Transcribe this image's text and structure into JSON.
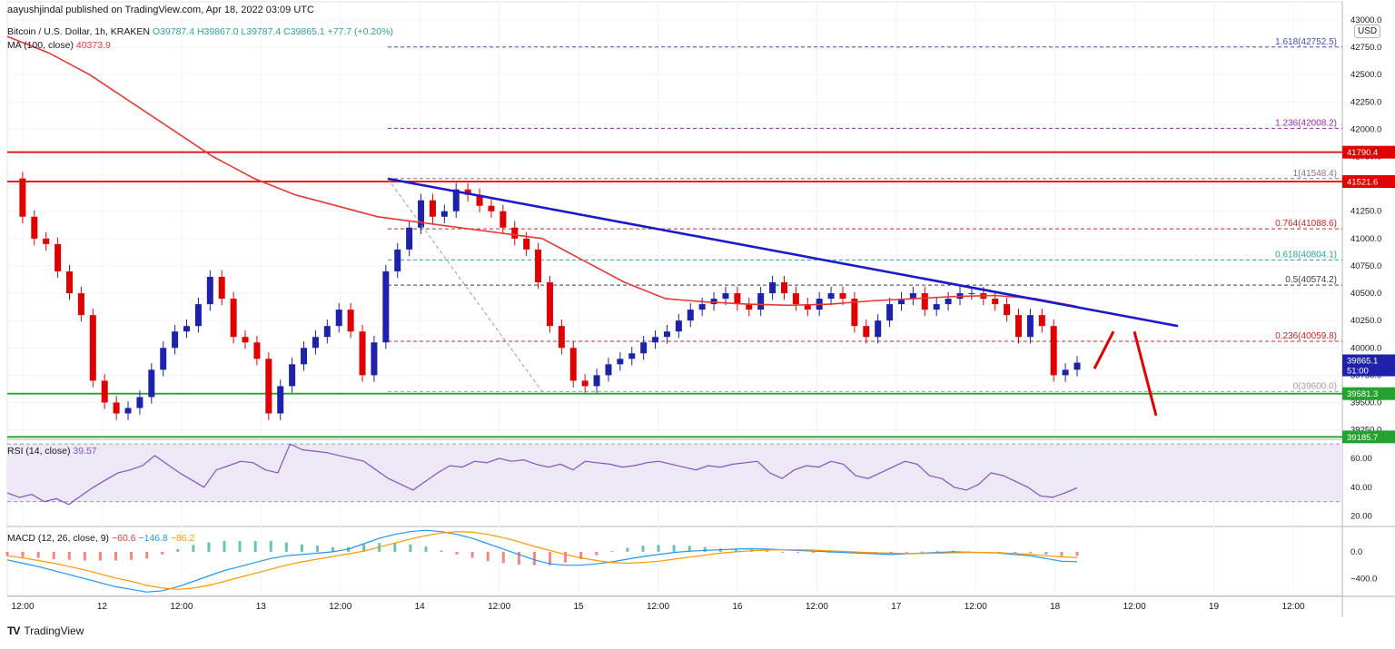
{
  "header": {
    "published": "aayushjindal published on TradingView.com, Apr 18, 2022 03:09 UTC",
    "symbol": "Bitcoin / U.S. Dollar, 1h, KRAKEN",
    "ohlc": "O39787.4  H39867.0  L39787.4  C39865.1  +77.7 (+0.20%)",
    "ma_label": "MA (100, close)",
    "ma_value": "40373.9",
    "currency": "USD"
  },
  "footer": {
    "brand": "TradingView",
    "logo": "TV"
  },
  "colors": {
    "up": "#1e22aa",
    "down": "#e00000",
    "ma": "#e53935",
    "trend": "#1a1acc",
    "support": "#26a031",
    "resistance": "#e00000",
    "rsi": "#7e57c2",
    "macd_line": "#2196f3",
    "signal": "#ff9800"
  },
  "chart_data": [
    {
      "type": "candlestick",
      "x_axis_labels": [
        "12:00",
        "12",
        "12:00",
        "13",
        "12:00",
        "14",
        "12:00",
        "15",
        "12:00",
        "16",
        "12:00",
        "17",
        "12:00",
        "18",
        "12:00",
        "19",
        "12:00"
      ],
      "y_ticks": [
        "43000.0",
        "42750.0",
        "42500.0",
        "42250.0",
        "42000.0",
        "41750.0",
        "41500.0",
        "41250.0",
        "41000.0",
        "40750.0",
        "40500.0",
        "40250.0",
        "40000.0",
        "39750.0",
        "39500.0",
        "39250.0"
      ],
      "ylim": [
        39180,
        43000
      ],
      "price_path": [
        41550,
        41200,
        41000,
        40950,
        40700,
        40500,
        40300,
        39700,
        39500,
        39400,
        39450,
        39550,
        39800,
        40000,
        40150,
        40200,
        40400,
        40650,
        40450,
        40100,
        40050,
        39900,
        39400,
        39650,
        39850,
        40000,
        40100,
        40200,
        40350,
        40150,
        39750,
        40050,
        40700,
        40900,
        41100,
        41350,
        41200,
        41250,
        41450,
        41400,
        41300,
        41250,
        41100,
        41000,
        40900,
        40600,
        40200,
        40000,
        39700,
        39650,
        39750,
        39850,
        39900,
        39950,
        40050,
        40100,
        40150,
        40250,
        40350,
        40400,
        40450,
        40500,
        40400,
        40350,
        40500,
        40600,
        40500,
        40400,
        40350,
        40450,
        40500,
        40450,
        40200,
        40100,
        40250,
        40400,
        40450,
        40500,
        40350,
        40400,
        40450,
        40500,
        40500,
        40450,
        40400,
        40300,
        40100,
        40300,
        40200,
        39750,
        39800,
        39865
      ],
      "moving_average": {
        "name": "MA (100, close)",
        "values": [
          42850,
          42700,
          42500,
          42250,
          42000,
          41750,
          41550,
          41400,
          41300,
          41200,
          41150,
          41100,
          41050,
          41000,
          40800,
          40600,
          40450,
          40420,
          40400,
          40390,
          40400,
          40430,
          40450,
          40470,
          40480,
          40450,
          40380
        ]
      },
      "fib_levels": [
        {
          "label": "1.618(42752.5)",
          "value": 42752.5
        },
        {
          "label": "1.236(42008.2)",
          "value": 42008.2
        },
        {
          "label": "1(41548.4)",
          "value": 41548.4
        },
        {
          "label": "0.764(41088.6)",
          "value": 41088.6
        },
        {
          "label": "0.618(40804.1)",
          "value": 40804.1
        },
        {
          "label": "0.5(40574.2)",
          "value": 40574.2
        },
        {
          "label": "0.236(40059.8)",
          "value": 40059.8
        },
        {
          "label": "0(39600.0)",
          "value": 39600.0
        }
      ],
      "horizontal_lines": [
        {
          "label": "41790.4",
          "value": 41790.4,
          "kind": "resistance"
        },
        {
          "label": "41521.6",
          "value": 41521.6,
          "kind": "resistance"
        },
        {
          "label": "39581.3",
          "value": 39581.3,
          "kind": "support"
        },
        {
          "label": "39185.7",
          "value": 39185.7,
          "kind": "support"
        }
      ],
      "price_tags": [
        {
          "label": "39865.1",
          "value": 39865.1,
          "sub": "51:00"
        }
      ],
      "trend_line": {
        "from": 41548,
        "to": 40200
      }
    },
    {
      "type": "line",
      "title": "RSI (14, close)",
      "value": "39.57",
      "y_ticks": [
        "60.00",
        "40.00",
        "20.00"
      ],
      "ylim": [
        14,
        72
      ],
      "band": [
        30,
        70
      ],
      "values": [
        36,
        33,
        35,
        30,
        32,
        28,
        34,
        40,
        45,
        50,
        52,
        55,
        62,
        56,
        50,
        45,
        40,
        52,
        55,
        58,
        57,
        52,
        50,
        70,
        66,
        65,
        64,
        62,
        60,
        58,
        52,
        46,
        42,
        38,
        44,
        50,
        55,
        54,
        58,
        57,
        60,
        58,
        59,
        56,
        54,
        56,
        52,
        58,
        57,
        56,
        54,
        55,
        57,
        58,
        56,
        54,
        52,
        55,
        54,
        56,
        57,
        58,
        50,
        46,
        52,
        55,
        54,
        58,
        56,
        48,
        46,
        50,
        54,
        58,
        56,
        48,
        46,
        40,
        38,
        42,
        50,
        48,
        44,
        40,
        34,
        33,
        36,
        39.57
      ]
    },
    {
      "type": "line",
      "title": "MACD (12, 26, close, 9)",
      "values_text": [
        "−60.6",
        "−146.8",
        "−86.2"
      ],
      "y_ticks": [
        "0.0",
        "−400.0"
      ],
      "ylim": [
        -650,
        350
      ],
      "macd": [
        -120,
        -170,
        -220,
        -280,
        -340,
        -400,
        -460,
        -520,
        -560,
        -600,
        -580,
        -520,
        -440,
        -360,
        -280,
        -220,
        -160,
        -100,
        -60,
        -40,
        -20,
        0,
        40,
        120,
        200,
        260,
        300,
        320,
        300,
        260,
        200,
        120,
        40,
        -40,
        -120,
        -180,
        -200,
        -200,
        -180,
        -150,
        -110,
        -70,
        -40,
        -10,
        10,
        20,
        30,
        40,
        45,
        40,
        30,
        20,
        10,
        0,
        -10,
        -20,
        -30,
        -40,
        -30,
        -20,
        -10,
        0,
        -5,
        -10,
        -20,
        -40,
        -60,
        -100,
        -140,
        -147
      ],
      "signal": [
        -60,
        -90,
        -130,
        -170,
        -220,
        -270,
        -330,
        -390,
        -440,
        -500,
        -540,
        -560,
        -540,
        -500,
        -440,
        -380,
        -320,
        -260,
        -200,
        -150,
        -110,
        -70,
        -30,
        10,
        70,
        130,
        190,
        240,
        280,
        300,
        290,
        260,
        210,
        150,
        80,
        20,
        -40,
        -90,
        -130,
        -160,
        -170,
        -160,
        -140,
        -110,
        -80,
        -50,
        -20,
        0,
        15,
        25,
        30,
        30,
        25,
        15,
        5,
        -5,
        -15,
        -20,
        -25,
        -25,
        -20,
        -15,
        -10,
        -10,
        -15,
        -25,
        -40,
        -60,
        -75,
        -86
      ]
    }
  ]
}
